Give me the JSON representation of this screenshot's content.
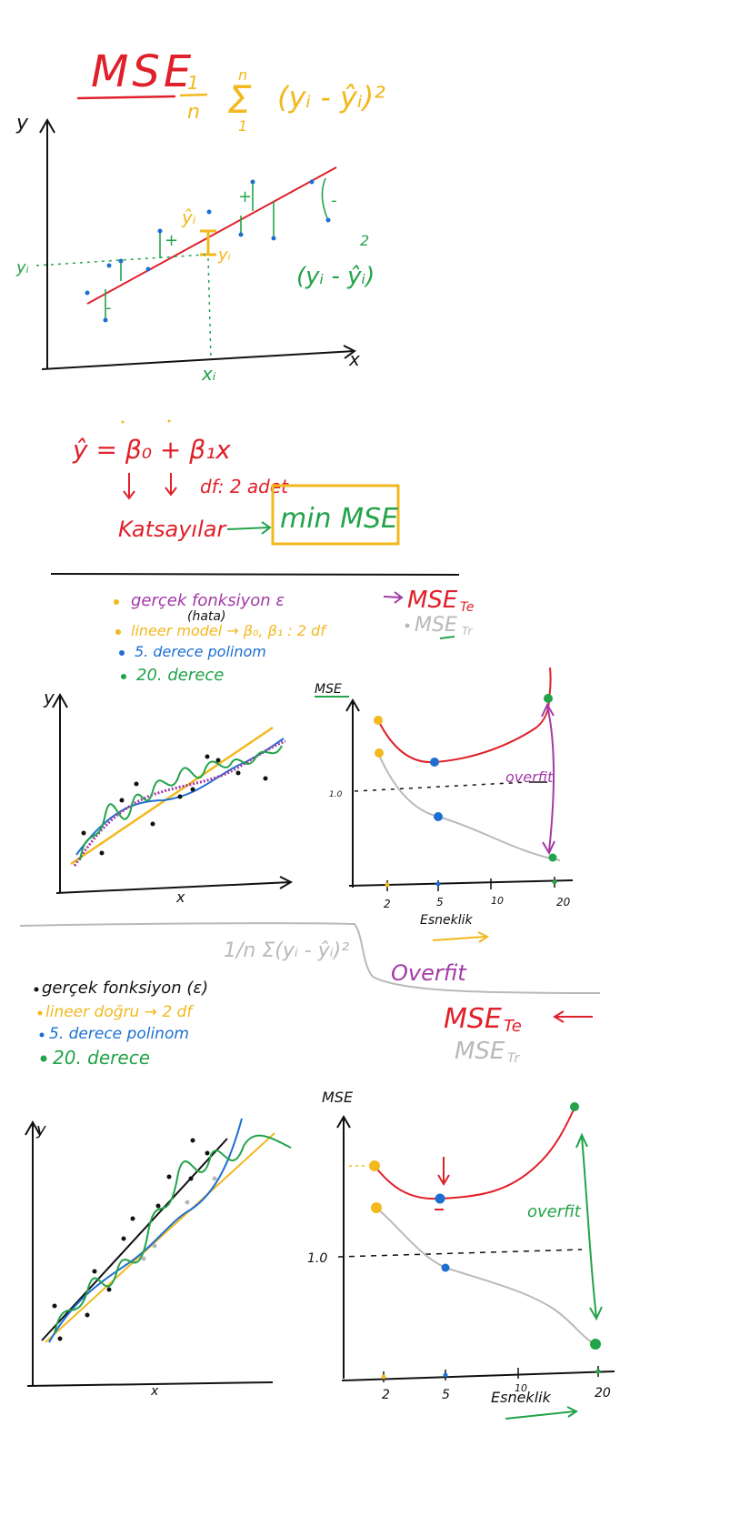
{
  "colors": {
    "red": "#e0202a",
    "yellow": "#f2b81d",
    "green": "#23a34a",
    "blue": "#1c6fd1",
    "purple": "#a23aa6",
    "gray": "#b9b9b9",
    "black": "#111111"
  },
  "section1": {
    "title": "MSE",
    "formula_frac": "1",
    "formula_n": "n",
    "formula_sum_top": "n",
    "formula_sum_bottom": "1",
    "formula_body": "(yᵢ - ŷᵢ)²",
    "axis_y": "y",
    "axis_x": "x",
    "label_yhat": "ŷᵢ",
    "label_yi_dot": "yᵢ",
    "label_yi": "yᵢ",
    "label_xi": "xᵢ",
    "residual_expr": "(yᵢ - ŷᵢ)",
    "residual_power": "2",
    "label_plus1": "+",
    "label_plus2": "+",
    "label_minus1": "-",
    "label_minus2": "-"
  },
  "section2": {
    "equation": "ŷ = β₀ + β₁x",
    "df_text": "df: 2 adet",
    "katsayilar": "Katsayılar",
    "min_mse": "min MSE"
  },
  "section3": {
    "legend": [
      {
        "text": "gerçek fonksiyon ε",
        "color": "purple"
      },
      {
        "text": "(hata)",
        "color": "black"
      },
      {
        "text": "lineer model → β₀, β₁ : 2 df",
        "color": "yellow"
      },
      {
        "text": "5. derece polinom",
        "color": "blue"
      },
      {
        "text": "20. derece",
        "color": "green"
      }
    ],
    "mse_te": "MSE",
    "mse_te_sub": "Te",
    "mse_tr": "MSE",
    "mse_tr_sub": "Tr",
    "plot_axis_y": "y",
    "plot_axis_x": "x",
    "chart_axis_y": "MSE",
    "chart_axis_x": "Esneklik",
    "chart_ticks": [
      "2",
      "5",
      "10",
      "20"
    ],
    "chart_level": "1.0",
    "overfit": "overfit"
  },
  "section4": {
    "formula": "1/n Σ(yᵢ - ŷᵢ)²",
    "overfit_big": "Overfit",
    "legend": [
      {
        "text": "gerçek fonksiyon (ε)",
        "color": "black"
      },
      {
        "text": "lineer doğru → 2 df",
        "color": "yellow"
      },
      {
        "text": "5. derece polinom",
        "color": "blue"
      },
      {
        "text": "20. derece",
        "color": "green"
      }
    ],
    "mse_te": "MSE",
    "mse_te_sub": "Te",
    "mse_tr": "MSE",
    "mse_tr_sub": "Tr",
    "plot_axis_y": "y",
    "plot_axis_x": "x",
    "chart_axis_y": "MSE",
    "chart_axis_x": "Esneklik",
    "chart_ticks": [
      "2",
      "5",
      "10",
      "20"
    ],
    "chart_level": "1.0",
    "overfit": "overfit"
  }
}
